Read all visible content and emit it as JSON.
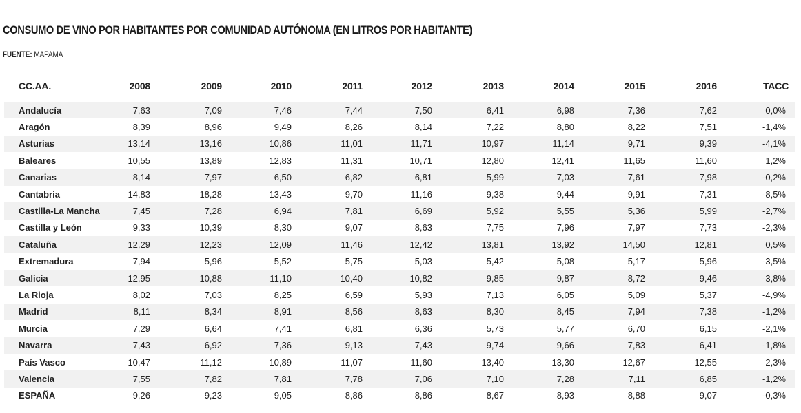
{
  "title": "Consumo de vino por habitantes por Comunidad Autónoma (en litros por habitante)",
  "source": {
    "label": "FUENTE:",
    "value": "MAPAMA"
  },
  "table": {
    "headers": [
      "CC.AA.",
      "2008",
      "2009",
      "2010",
      "2011",
      "2012",
      "2013",
      "2014",
      "2015",
      "2016",
      "TACC"
    ],
    "rows": [
      [
        "Andalucía",
        "7,63",
        "7,09",
        "7,46",
        "7,44",
        "7,50",
        "6,41",
        "6,98",
        "7,36",
        "7,62",
        "0,0%"
      ],
      [
        "Aragón",
        "8,39",
        "8,96",
        "9,49",
        "8,26",
        "8,14",
        "7,22",
        "8,80",
        "8,22",
        "7,51",
        "-1,4%"
      ],
      [
        "Asturias",
        "13,14",
        "13,16",
        "10,86",
        "11,01",
        "11,71",
        "10,97",
        "11,14",
        "9,71",
        "9,39",
        "-4,1%"
      ],
      [
        "Baleares",
        "10,55",
        "13,89",
        "12,83",
        "11,31",
        "10,71",
        "12,80",
        "12,41",
        "11,65",
        "11,60",
        "1,2%"
      ],
      [
        "Canarias",
        "8,14",
        "7,97",
        "6,50",
        "6,82",
        "6,81",
        "5,99",
        "7,03",
        "7,61",
        "7,98",
        "-0,2%"
      ],
      [
        "Cantabria",
        "14,83",
        "18,28",
        "13,43",
        "9,70",
        "11,16",
        "9,38",
        "9,44",
        "9,91",
        "7,31",
        "-8,5%"
      ],
      [
        "Castilla-La Mancha",
        "7,45",
        "7,28",
        "6,94",
        "7,81",
        "6,69",
        "5,92",
        "5,55",
        "5,36",
        "5,99",
        "-2,7%"
      ],
      [
        "Castilla y León",
        "9,33",
        "10,39",
        "8,30",
        "9,07",
        "8,63",
        "7,75",
        "7,96",
        "7,97",
        "7,73",
        "-2,3%"
      ],
      [
        "Cataluña",
        "12,29",
        "12,23",
        "12,09",
        "11,46",
        "12,42",
        "13,81",
        "13,92",
        "14,50",
        "12,81",
        "0,5%"
      ],
      [
        "Extremadura",
        "7,94",
        "5,96",
        "5,52",
        "5,75",
        "5,03",
        "5,42",
        "5,08",
        "5,17",
        "5,96",
        "-3,5%"
      ],
      [
        "Galicia",
        "12,95",
        "10,88",
        "11,10",
        "10,40",
        "10,82",
        "9,85",
        "9,87",
        "8,72",
        "9,46",
        "-3,8%"
      ],
      [
        "La Rioja",
        "8,02",
        "7,03",
        "8,25",
        "6,59",
        "5,93",
        "7,13",
        "6,05",
        "5,09",
        "5,37",
        "-4,9%"
      ],
      [
        "Madrid",
        "8,11",
        "8,34",
        "8,91",
        "8,56",
        "8,63",
        "8,30",
        "8,45",
        "7,94",
        "7,38",
        "-1,2%"
      ],
      [
        "Murcia",
        "7,29",
        "6,64",
        "7,41",
        "6,81",
        "6,36",
        "5,73",
        "5,77",
        "6,70",
        "6,15",
        "-2,1%"
      ],
      [
        "Navarra",
        "7,43",
        "6,92",
        "7,36",
        "9,13",
        "7,43",
        "9,74",
        "9,66",
        "7,83",
        "6,41",
        "-1,8%"
      ],
      [
        "País Vasco",
        "10,47",
        "11,12",
        "10,89",
        "11,07",
        "11,60",
        "13,40",
        "13,30",
        "12,67",
        "12,55",
        "2,3%"
      ],
      [
        "Valencia",
        "7,55",
        "7,82",
        "7,81",
        "7,78",
        "7,06",
        "7,10",
        "7,28",
        "7,11",
        "6,85",
        "-1,2%"
      ],
      [
        "ESPAÑA",
        "9,26",
        "9,23",
        "9,05",
        "8,86",
        "8,86",
        "8,67",
        "8,93",
        "8,88",
        "9,07",
        "-0,3%"
      ]
    ]
  }
}
